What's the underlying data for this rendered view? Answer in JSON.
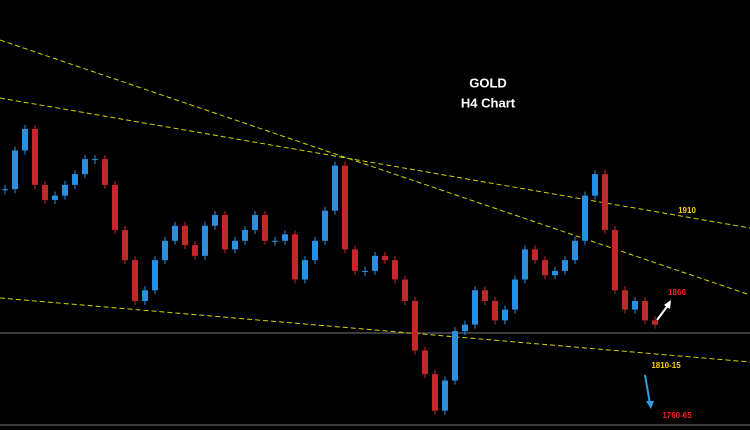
{
  "chart_data": {
    "type": "candlestick",
    "title": "GOLD",
    "subtitle": "H4 Chart",
    "values": [
      1862,
      1880,
      1890,
      1864,
      1857,
      1859,
      1864,
      1869,
      1876,
      1876,
      1864,
      1843,
      1829,
      1810,
      1815,
      1829,
      1838,
      1845,
      1836,
      1831,
      1845,
      1850,
      1834,
      1838,
      1843,
      1850,
      1838,
      1838,
      1841,
      1820,
      1829,
      1838,
      1852,
      1873,
      1834,
      1824,
      1824,
      1831,
      1829,
      1820,
      1810,
      1787,
      1776,
      1759,
      1773,
      1796,
      1799,
      1815,
      1810,
      1801,
      1806,
      1820,
      1834,
      1829,
      1822,
      1824,
      1829,
      1838,
      1859,
      1869,
      1843,
      1815,
      1806,
      1810,
      1801,
      1799
    ],
    "ylim": [
      1750,
      1950
    ],
    "up_color": "#2a8fe0",
    "down_color": "#c0282a",
    "annotations": [
      {
        "text": "1910",
        "color": "#ffd400"
      },
      {
        "text": "1860",
        "color": "#ff2020"
      },
      {
        "text": "1810-15",
        "color": "#ffd400"
      },
      {
        "text": "1760-65",
        "color": "#ff2020"
      }
    ]
  }
}
